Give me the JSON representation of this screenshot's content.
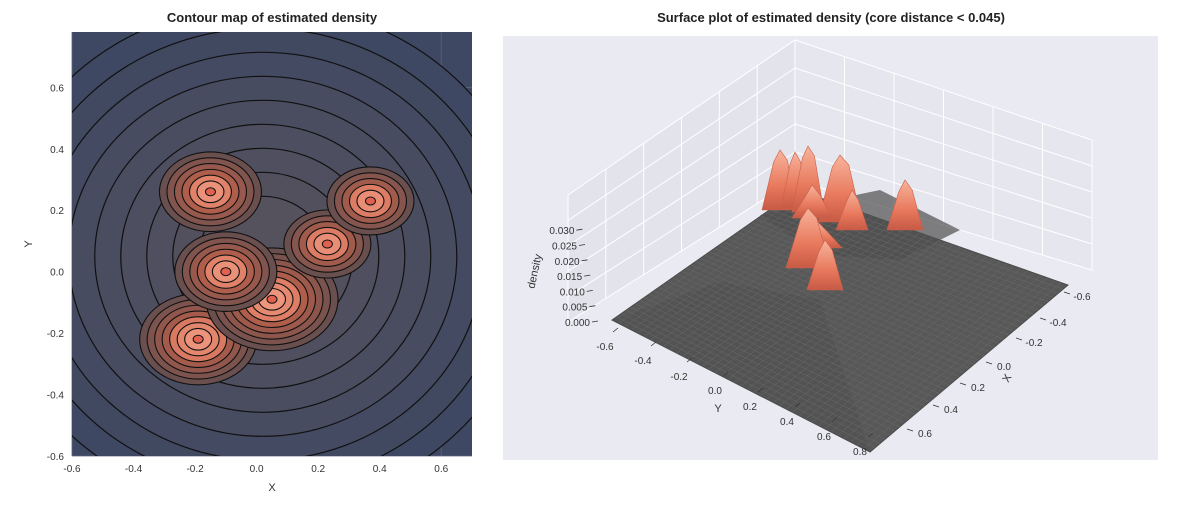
{
  "chart_data": [
    {
      "type": "contour",
      "title": "Contour map of estimated density",
      "xlabel": "X",
      "ylabel": "Y",
      "xlim": [
        -0.6,
        0.7
      ],
      "ylim": [
        -0.6,
        0.78
      ],
      "x_ticks": [
        "-0.6",
        "-0.4",
        "-0.2",
        "0.0",
        "0.2",
        "0.4",
        "0.6"
      ],
      "y_ticks": [
        "-0.6",
        "-0.4",
        "-0.2",
        "0.0",
        "0.2",
        "0.4",
        "0.6"
      ],
      "grid": true,
      "colors": {
        "background": "#3e4862",
        "low": "#3e4862",
        "high": "#f4a088",
        "line": "#111111"
      },
      "peaks": [
        {
          "x": -0.15,
          "y": 0.26,
          "w": 3.1
        },
        {
          "x": -0.19,
          "y": -0.22,
          "w": 3.3
        },
        {
          "x": 0.05,
          "y": -0.09,
          "w": 3.8
        },
        {
          "x": 0.23,
          "y": 0.09,
          "w": 2.6
        },
        {
          "x": 0.37,
          "y": 0.23,
          "w": 2.6
        },
        {
          "x": -0.1,
          "y": 0.0,
          "w": 2.8
        }
      ]
    },
    {
      "type": "surface3d",
      "title": "Surface plot of estimated density (core distance < 0.045)",
      "xlabel": "X",
      "ylabel": "Y",
      "zlabel": "density",
      "x_ticks": [
        "-0.6",
        "-0.4",
        "-0.2",
        "0.0",
        "0.2",
        "0.4",
        "0.6"
      ],
      "y_ticks": [
        "-0.6",
        "-0.4",
        "-0.2",
        "0.0",
        "0.2",
        "0.4",
        "0.6",
        "0.8"
      ],
      "z_ticks": [
        "0.000",
        "0.005",
        "0.010",
        "0.015",
        "0.020",
        "0.025",
        "0.030"
      ],
      "colors": {
        "pane": "#eaeaf2",
        "surface": "#555555",
        "peak": "#ef8f74"
      }
    }
  ]
}
